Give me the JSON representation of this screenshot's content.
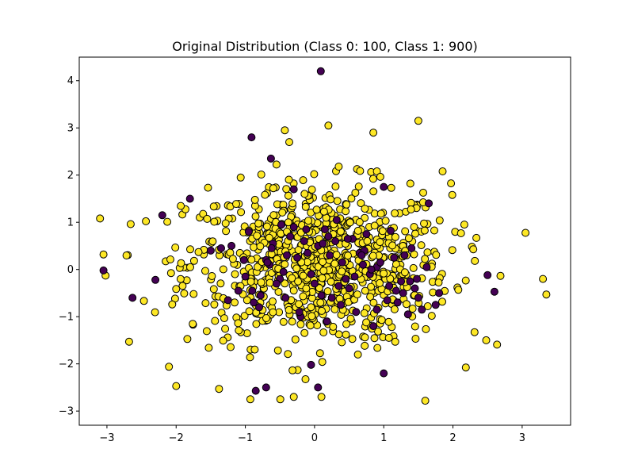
{
  "chart_data": {
    "type": "scatter",
    "title": "Original Distribution (Class 0: 100, Class 1: 900)",
    "xlabel": "",
    "ylabel": "",
    "xlim": [
      -3.4,
      3.7
    ],
    "ylim": [
      -3.3,
      4.5
    ],
    "xticks": [
      -3,
      -2,
      -1,
      0,
      1,
      2,
      3
    ],
    "yticks": [
      -3,
      -2,
      -1,
      0,
      1,
      2,
      3,
      4
    ],
    "xtick_labels": [
      "−3",
      "−2",
      "−1",
      "0",
      "1",
      "2",
      "3"
    ],
    "ytick_labels": [
      "−3",
      "−2",
      "−1",
      "0",
      "1",
      "2",
      "3",
      "4"
    ],
    "grid": false,
    "legend": "none",
    "series": [
      {
        "class": 0,
        "color": "#440154",
        "count": 100,
        "x": [
          0.09,
          -0.91,
          -0.63,
          -2.63,
          1.0,
          -0.3,
          -0.7,
          1.0,
          -3.05,
          -2.2,
          1.65,
          -2.3,
          2.6,
          2.5,
          -0.85,
          0.05,
          -0.05,
          1.1,
          -0.9,
          0.9,
          1.3,
          -0.5,
          0.3,
          0.5,
          0.7,
          -0.2,
          -0.7,
          0.8,
          -1.2,
          -0.3,
          1.5,
          0.0,
          0.2,
          1.8,
          -1.5,
          0.6,
          -0.4,
          1.2,
          -1.0,
          0.4,
          -0.6,
          1.4,
          -1.8,
          0.1,
          -0.1,
          0.9,
          -0.8,
          0.35,
          1.05,
          -0.25,
          0.55,
          1.25,
          -1.1,
          0.75,
          -0.45,
          0.15,
          1.55,
          -0.65,
          0.45,
          -1.35,
          1.75,
          0.25,
          -0.15,
          0.85,
          1.15,
          -0.55,
          0.65,
          -0.95,
          1.35,
          -0.05,
          0.95,
          -1.25,
          0.05,
          1.45,
          -0.35,
          0.58,
          1.62,
          -0.78,
          0.22,
          1.08,
          -0.48,
          0.38,
          -1.02,
          0.72,
          1.28,
          -0.22,
          0.48,
          -0.68,
          1.38,
          0.12,
          -0.88,
          0.82,
          -0.12,
          1.18,
          0.32,
          -0.42,
          0.68,
          1.48,
          -0.62,
          0.18
        ],
        "y": [
          4.2,
          2.8,
          2.35,
          -0.6,
          1.75,
          1.7,
          -2.5,
          -2.2,
          -0.02,
          1.15,
          1.4,
          -0.22,
          -0.47,
          -0.12,
          -2.57,
          -2.5,
          -2.02,
          0.82,
          -0.45,
          -0.85,
          0.3,
          -0.2,
          0.6,
          -0.4,
          0.1,
          -1.0,
          0.2,
          -0.1,
          0.5,
          0.9,
          -0.6,
          -0.3,
          0.7,
          -0.5,
          0.4,
          -0.9,
          0.3,
          -0.7,
          -0.15,
          0.15,
          0.55,
          0.45,
          1.5,
          -0.55,
          0.35,
          0.05,
          -0.8,
          -0.35,
          -0.65,
          0.25,
          0.65,
          -0.25,
          -0.45,
          0.75,
          -0.05,
          0.85,
          -0.85,
          0.1,
          -0.2,
          0.45,
          -0.75,
          -0.6,
          0.6,
          -1.2,
          0.25,
          -0.3,
          0.35,
          0.8,
          -0.95,
          -0.1,
          0.15,
          -0.65,
          0.5,
          -0.4,
          0.7,
          -0.15,
          0.05,
          -0.55,
          0.3,
          -0.35,
          0.95,
          -0.75,
          0.2,
          0.4,
          -0.5,
          -0.9,
          0.65,
          0.15,
          -0.25,
          0.55,
          -0.7,
          0.0,
          0.85,
          -0.45,
          1.05,
          -0.6,
          0.3,
          -0.2,
          0.45,
          -1.1
        ]
      },
      {
        "class": 1,
        "color": "#fde725",
        "count": 900
      }
    ]
  }
}
